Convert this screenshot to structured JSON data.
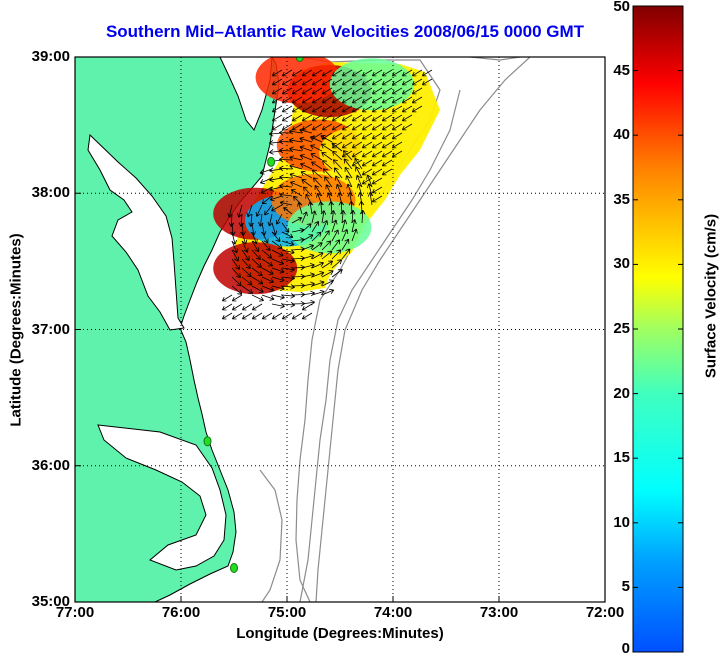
{
  "chart_data": {
    "type": "heatmap",
    "title": "Southern Mid–Atlantic Raw Velocities 2008/06/15 0000 GMT",
    "xlabel": "Longitude (Degrees:Minutes)",
    "ylabel": "Latitude (Degrees:Minutes)",
    "colorbar_label": "Surface Velocity (cm/s)",
    "xlim": [
      -77,
      -72
    ],
    "ylim": [
      35,
      39
    ],
    "x_ticks": [
      {
        "value": -77,
        "label": "77:00"
      },
      {
        "value": -76,
        "label": "76:00"
      },
      {
        "value": -75,
        "label": "75:00"
      },
      {
        "value": -74,
        "label": "74:00"
      },
      {
        "value": -73,
        "label": "73:00"
      },
      {
        "value": -72,
        "label": "72:00"
      }
    ],
    "y_ticks": [
      {
        "value": 35,
        "label": "35:00"
      },
      {
        "value": 36,
        "label": "36:00"
      },
      {
        "value": 37,
        "label": "37:00"
      },
      {
        "value": 38,
        "label": "38:00"
      },
      {
        "value": 39,
        "label": "39:00"
      }
    ],
    "colorbar": {
      "range": [
        0,
        50
      ],
      "ticks": [
        0,
        5,
        10,
        15,
        20,
        25,
        30,
        35,
        40,
        45,
        50
      ],
      "colormap": "jet"
    },
    "grid": true,
    "velocity_regions": [
      {
        "lon": -74.6,
        "lat": 38.75,
        "speed": 48
      },
      {
        "lon": -74.9,
        "lat": 38.85,
        "speed": 42
      },
      {
        "lon": -74.2,
        "lat": 38.8,
        "speed": 22
      },
      {
        "lon": -74.7,
        "lat": 38.35,
        "speed": 40
      },
      {
        "lon": -74.3,
        "lat": 38.3,
        "speed": 30
      },
      {
        "lon": -75.3,
        "lat": 37.85,
        "speed": 47
      },
      {
        "lon": -75.0,
        "lat": 37.8,
        "speed": 8
      },
      {
        "lon": -74.75,
        "lat": 37.95,
        "speed": 38
      },
      {
        "lon": -75.3,
        "lat": 37.45,
        "speed": 47
      },
      {
        "lon": -74.6,
        "lat": 37.75,
        "speed": 22
      }
    ],
    "radar_sites": [
      {
        "lon": -74.88,
        "lat": 39.0
      },
      {
        "lon": -75.15,
        "lat": 38.23
      },
      {
        "lon": -75.75,
        "lat": 36.18
      },
      {
        "lon": -75.5,
        "lat": 35.25
      }
    ]
  },
  "colors": {
    "title": "#0000ee",
    "land": "#5ff2ad",
    "water": "#ffffff",
    "coast": "#000000",
    "bathymetry": "#8c8c8c",
    "site_marker": "#22dd22"
  }
}
